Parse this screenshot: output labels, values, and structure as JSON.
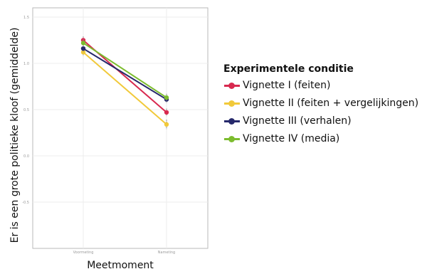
{
  "chart_data": {
    "type": "line",
    "title": "",
    "xlabel": "Meetmoment",
    "ylabel": "Er is een grote politieke kloof (gemiddelde)",
    "categories": [
      "Voormeting",
      "Nameting"
    ],
    "ylim": [
      -1.0,
      1.6
    ],
    "yticks": [
      -0.5,
      0.0,
      0.5,
      1.0,
      1.5
    ],
    "ytick_labels": [
      "-0.5",
      "0.0",
      "0.5",
      "1.0",
      "1.5"
    ],
    "grid": true,
    "legend": {
      "title": "Experimentele conditie",
      "placement": "right"
    },
    "series": [
      {
        "name": "Vignette I (feiten)",
        "color": "#d8294f",
        "values": [
          1.25,
          0.47
        ],
        "errors": [
          0.04,
          0.04
        ]
      },
      {
        "name": "Vignette II (feiten + vergelijkingen)",
        "color": "#f1c93a",
        "values": [
          1.12,
          0.34
        ],
        "errors": [
          0.04,
          0.05
        ]
      },
      {
        "name": "Vignette III (verhalen)",
        "color": "#26296b",
        "values": [
          1.16,
          0.61
        ],
        "errors": [
          0.04,
          0.04
        ]
      },
      {
        "name": "Vignette IV (media)",
        "color": "#7cbc2e",
        "values": [
          1.22,
          0.63
        ],
        "errors": [
          0.04,
          0.04
        ]
      }
    ]
  }
}
